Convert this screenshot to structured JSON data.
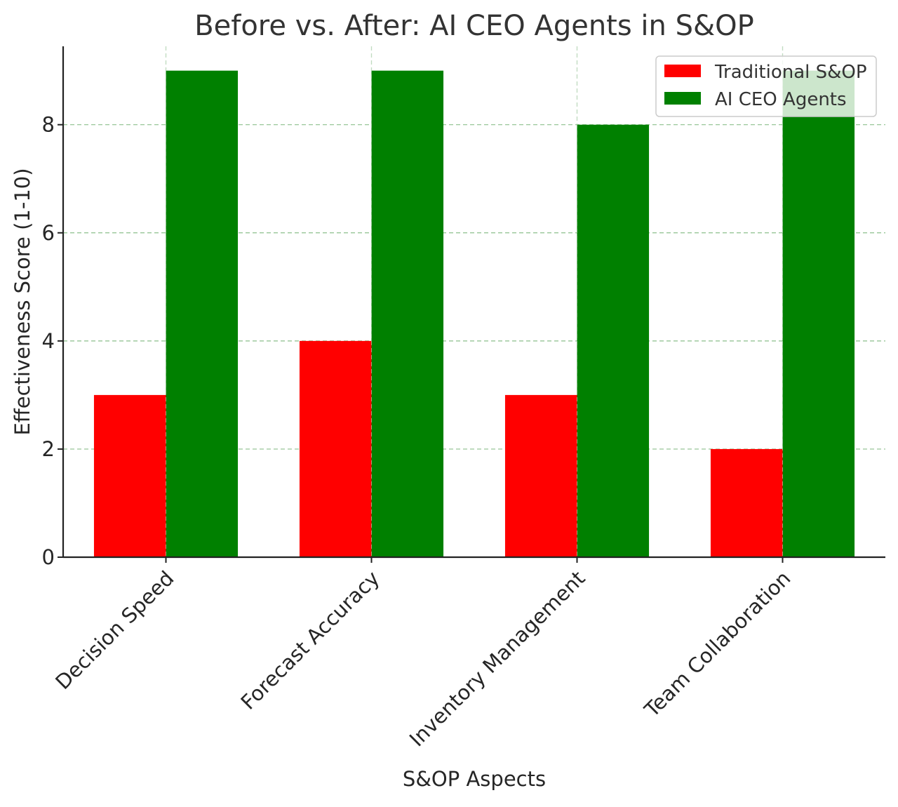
{
  "chart_data": {
    "type": "bar",
    "title": "Before vs. After: AI CEO Agents in S&OP",
    "xlabel": "S&OP Aspects",
    "ylabel": "Effectiveness Score (1-10)",
    "categories": [
      "Decision Speed",
      "Forecast Accuracy",
      "Inventory Management",
      "Team Collaboration"
    ],
    "series": [
      {
        "name": "Traditional S&OP",
        "color": "#ff0000",
        "values": [
          3,
          4,
          3,
          2
        ]
      },
      {
        "name": "AI CEO Agents",
        "color": "#008000",
        "values": [
          9,
          9,
          8,
          9
        ]
      }
    ],
    "ylim": [
      0,
      9.45
    ],
    "yticks": [
      0,
      2,
      4,
      6,
      8
    ],
    "grid": true,
    "legend_position": "top-right"
  }
}
